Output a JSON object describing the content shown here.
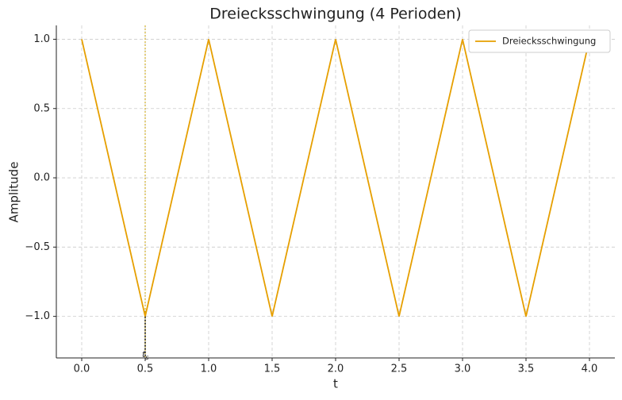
{
  "chart_data": {
    "type": "line",
    "title": "Dreiecksschwingung (4 Perioden)",
    "xlabel": "t",
    "ylabel": "Amplitude",
    "x": [
      0,
      0.5,
      1,
      1.5,
      2,
      2.5,
      3,
      3.5,
      4
    ],
    "series": [
      {
        "name": "Dreiecksschwingung",
        "color": "#e69f00",
        "values": [
          1,
          -1,
          1,
          -1,
          1,
          -1,
          1,
          -1,
          1
        ]
      }
    ],
    "xlim": [
      -0.2,
      4.2
    ],
    "xticks": [
      {
        "value": 0,
        "label": "0.0"
      },
      0.5,
      {
        "value": 1,
        "label": "1.0"
      },
      1.5,
      {
        "value": 2,
        "label": "2.0"
      },
      2.5,
      {
        "value": 3,
        "label": "3.0"
      },
      3.5,
      {
        "value": 4,
        "label": "4.0"
      }
    ],
    "ylim": [
      -1.3,
      1.1
    ],
    "yticks": [
      {
        "value": -1,
        "label": "−1.0"
      },
      {
        "value": -0.5,
        "label": "−0.5"
      },
      {
        "value": 0,
        "label": "0.0"
      },
      {
        "value": 0.5,
        "label": "0.5"
      },
      {
        "value": 1,
        "label": "1.0"
      }
    ],
    "grid": true,
    "legend": "upper right",
    "annotation": {
      "x": 0.5,
      "y": -1,
      "label": "t",
      "subscript": "s",
      "line_color": "#c8a000"
    }
  }
}
